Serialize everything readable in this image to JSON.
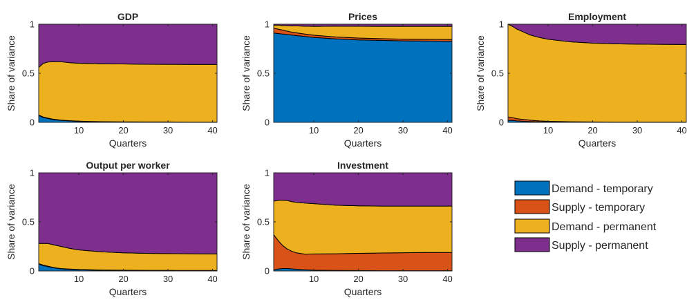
{
  "colors": {
    "demand_temporary": "#0072BD",
    "supply_temporary": "#D95319",
    "demand_permanent": "#EDB120",
    "supply_permanent": "#7E2F8E"
  },
  "chart_data": [
    {
      "type": "area",
      "stacked": true,
      "title": "GDP",
      "xlabel": "Quarters",
      "ylabel": "Share of variance",
      "xlim": [
        1,
        41
      ],
      "ylim": [
        0,
        1
      ],
      "xticks": [
        "10",
        "20",
        "30",
        "40"
      ],
      "yticks": [
        "0",
        "0.5",
        "1"
      ],
      "x": [
        1,
        2,
        3,
        4,
        5,
        6,
        8,
        10,
        15,
        20,
        25,
        30,
        35,
        41
      ],
      "series": [
        {
          "name": "Demand - temporary",
          "values": [
            0.07,
            0.05,
            0.04,
            0.03,
            0.025,
            0.02,
            0.015,
            0.01,
            0.005,
            0.003,
            0.002,
            0.002,
            0.001,
            0.001
          ]
        },
        {
          "name": "Supply - temporary",
          "values": [
            0.005,
            0.005,
            0.004,
            0.004,
            0.003,
            0.003,
            0.002,
            0.002,
            0.002,
            0.002,
            0.002,
            0.002,
            0.002,
            0.002
          ]
        },
        {
          "name": "Demand - permanent",
          "values": [
            0.485,
            0.545,
            0.57,
            0.585,
            0.59,
            0.595,
            0.59,
            0.59,
            0.59,
            0.59,
            0.588,
            0.587,
            0.587,
            0.587
          ]
        },
        {
          "name": "Supply - permanent",
          "values": [
            0.44,
            0.4,
            0.386,
            0.381,
            0.382,
            0.382,
            0.393,
            0.398,
            0.403,
            0.405,
            0.408,
            0.409,
            0.41,
            0.41
          ]
        }
      ]
    },
    {
      "type": "area",
      "stacked": true,
      "title": "Prices",
      "xlabel": "Quarters",
      "ylabel": "Share of variance",
      "xlim": [
        1,
        41
      ],
      "ylim": [
        0,
        1
      ],
      "xticks": [
        "10",
        "20",
        "30",
        "40"
      ],
      "yticks": [
        "0",
        "0.5",
        "1"
      ],
      "x": [
        1,
        2,
        3,
        4,
        5,
        6,
        8,
        10,
        15,
        20,
        25,
        30,
        35,
        41
      ],
      "series": [
        {
          "name": "Demand - temporary",
          "values": [
            0.91,
            0.905,
            0.9,
            0.895,
            0.89,
            0.885,
            0.875,
            0.865,
            0.85,
            0.84,
            0.835,
            0.83,
            0.828,
            0.826
          ]
        },
        {
          "name": "Supply - temporary",
          "values": [
            0.05,
            0.045,
            0.04,
            0.035,
            0.03,
            0.028,
            0.025,
            0.023,
            0.02,
            0.019,
            0.018,
            0.018,
            0.018,
            0.018
          ]
        },
        {
          "name": "Demand - permanent",
          "values": [
            0.03,
            0.04,
            0.047,
            0.055,
            0.063,
            0.07,
            0.08,
            0.09,
            0.11,
            0.12,
            0.125,
            0.13,
            0.132,
            0.134
          ]
        },
        {
          "name": "Supply - permanent",
          "values": [
            0.01,
            0.01,
            0.013,
            0.015,
            0.017,
            0.017,
            0.02,
            0.022,
            0.02,
            0.021,
            0.022,
            0.022,
            0.022,
            0.022
          ]
        }
      ]
    },
    {
      "type": "area",
      "stacked": true,
      "title": "Employment",
      "xlabel": "Quarters",
      "ylabel": "Share of variance",
      "xlim": [
        1,
        41
      ],
      "ylim": [
        0,
        1
      ],
      "xticks": [
        "10",
        "20",
        "30",
        "40"
      ],
      "yticks": [
        "0",
        "0.5",
        "1"
      ],
      "x": [
        1,
        2,
        3,
        4,
        5,
        6,
        8,
        10,
        15,
        20,
        25,
        30,
        35,
        41
      ],
      "series": [
        {
          "name": "Demand - temporary",
          "values": [
            0.02,
            0.02,
            0.015,
            0.012,
            0.01,
            0.008,
            0.005,
            0.004,
            0.002,
            0.001,
            0.001,
            0.001,
            0.001,
            0.001
          ]
        },
        {
          "name": "Supply - temporary",
          "values": [
            0.035,
            0.028,
            0.023,
            0.02,
            0.017,
            0.014,
            0.01,
            0.007,
            0.004,
            0.003,
            0.002,
            0.002,
            0.002,
            0.002
          ]
        },
        {
          "name": "Demand - permanent",
          "values": [
            0.945,
            0.93,
            0.912,
            0.898,
            0.883,
            0.868,
            0.85,
            0.836,
            0.814,
            0.803,
            0.797,
            0.794,
            0.792,
            0.79
          ]
        },
        {
          "name": "Supply - permanent",
          "values": [
            0.0,
            0.022,
            0.05,
            0.07,
            0.09,
            0.11,
            0.135,
            0.153,
            0.18,
            0.193,
            0.2,
            0.203,
            0.205,
            0.207
          ]
        }
      ]
    },
    {
      "type": "area",
      "stacked": true,
      "title": "Output per worker",
      "xlabel": "Quarters",
      "ylabel": "Share of variance",
      "xlim": [
        1,
        41
      ],
      "ylim": [
        0,
        1
      ],
      "xticks": [
        "10",
        "20",
        "30",
        "40"
      ],
      "yticks": [
        "0",
        "0.5",
        "1"
      ],
      "x": [
        1,
        2,
        3,
        4,
        5,
        6,
        8,
        10,
        15,
        20,
        25,
        30,
        35,
        41
      ],
      "series": [
        {
          "name": "Demand - temporary",
          "values": [
            0.07,
            0.055,
            0.045,
            0.035,
            0.028,
            0.022,
            0.016,
            0.012,
            0.007,
            0.005,
            0.003,
            0.003,
            0.002,
            0.002
          ]
        },
        {
          "name": "Supply - temporary",
          "values": [
            0.005,
            0.005,
            0.004,
            0.004,
            0.003,
            0.003,
            0.003,
            0.003,
            0.003,
            0.003,
            0.003,
            0.003,
            0.003,
            0.003
          ]
        },
        {
          "name": "Demand - permanent",
          "values": [
            0.205,
            0.22,
            0.231,
            0.231,
            0.229,
            0.225,
            0.211,
            0.2,
            0.185,
            0.177,
            0.174,
            0.171,
            0.17,
            0.168
          ]
        },
        {
          "name": "Supply - permanent",
          "values": [
            0.72,
            0.72,
            0.72,
            0.73,
            0.74,
            0.75,
            0.77,
            0.785,
            0.805,
            0.815,
            0.82,
            0.823,
            0.825,
            0.827
          ]
        }
      ]
    },
    {
      "type": "area",
      "stacked": true,
      "title": "Investment",
      "xlabel": "Quarters",
      "ylabel": "Share of variance",
      "xlim": [
        1,
        41
      ],
      "ylim": [
        0,
        1
      ],
      "xticks": [
        "10",
        "20",
        "30",
        "40"
      ],
      "yticks": [
        "0",
        "0.5",
        "1"
      ],
      "x": [
        1,
        2,
        3,
        4,
        5,
        6,
        8,
        10,
        15,
        20,
        25,
        30,
        35,
        41
      ],
      "series": [
        {
          "name": "Demand - temporary",
          "values": [
            0.01,
            0.02,
            0.025,
            0.025,
            0.022,
            0.018,
            0.012,
            0.008,
            0.005,
            0.004,
            0.003,
            0.003,
            0.003,
            0.003
          ]
        },
        {
          "name": "Supply - temporary",
          "values": [
            0.36,
            0.29,
            0.235,
            0.2,
            0.18,
            0.168,
            0.16,
            0.165,
            0.17,
            0.176,
            0.18,
            0.183,
            0.185,
            0.186
          ]
        },
        {
          "name": "Demand - permanent",
          "values": [
            0.34,
            0.41,
            0.462,
            0.493,
            0.505,
            0.514,
            0.52,
            0.513,
            0.495,
            0.484,
            0.478,
            0.475,
            0.473,
            0.472
          ]
        },
        {
          "name": "Supply - permanent",
          "values": [
            0.29,
            0.28,
            0.278,
            0.282,
            0.293,
            0.3,
            0.308,
            0.314,
            0.33,
            0.336,
            0.339,
            0.339,
            0.339,
            0.339
          ]
        }
      ]
    }
  ],
  "legend": [
    {
      "label": "Demand - temporary",
      "color_key": "demand_temporary"
    },
    {
      "label": "Supply - temporary",
      "color_key": "supply_temporary"
    },
    {
      "label": "Demand - permanent",
      "color_key": "demand_permanent"
    },
    {
      "label": "Supply - permanent",
      "color_key": "supply_permanent"
    }
  ]
}
